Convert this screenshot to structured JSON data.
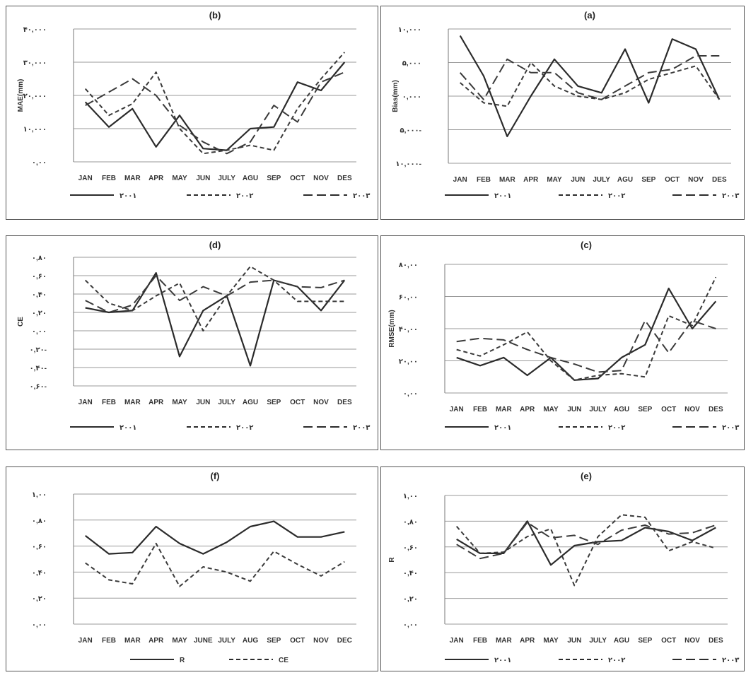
{
  "chart_data": [
    {
      "type": "line",
      "title": "(b)",
      "ylabel": "MAE(mm)",
      "yticks": [
        "۰,۰۰",
        "۱۰,۰۰۰",
        "۲۰,۰۰۰",
        "۳۰,۰۰۰",
        "۴۰,۰۰۰"
      ],
      "ylim": [
        0,
        40
      ],
      "categories": [
        "JAN",
        "FEB",
        "MAR",
        "APR",
        "MAY",
        "JUN",
        "JULY",
        "AGU",
        "SEP",
        "OCT",
        "NOV",
        "DES"
      ],
      "series": [
        {
          "name": "۲۰۰۱",
          "style": "solid",
          "values": [
            18,
            10.5,
            16,
            4.5,
            14,
            4,
            3.5,
            10,
            10.5,
            24,
            21.5,
            30
          ]
        },
        {
          "name": "۲۰۰۲",
          "style": "dashed",
          "values": [
            22,
            14,
            17.5,
            27,
            10,
            2.5,
            3.5,
            5,
            3.5,
            16,
            25,
            33
          ]
        },
        {
          "name": "۲۰۰۳",
          "style": "longdash",
          "values": [
            17,
            21,
            25,
            20,
            11,
            6,
            2.5,
            6,
            17,
            12,
            24,
            27
          ]
        }
      ]
    },
    {
      "type": "line",
      "title": "(a)",
      "ylabel": "Bias(mm)",
      "yticks": [
        "۱۰,۰۰۰-",
        "۵,۰۰۰-",
        "۰,۰۰۰",
        "۵,۰۰۰",
        "۱۰,۰۰۰"
      ],
      "ylim": [
        -10,
        10
      ],
      "categories": [
        "JAN",
        "FEB",
        "MAR",
        "APR",
        "MAY",
        "JUN",
        "JULY",
        "AGU",
        "SEP",
        "OCT",
        "NOV",
        "DES"
      ],
      "series": [
        {
          "name": "۲۰۰۱",
          "style": "solid",
          "values": [
            9,
            3,
            -6,
            0,
            5.5,
            1.5,
            0.5,
            7,
            -1,
            8.5,
            7,
            -0.5
          ]
        },
        {
          "name": "۲۰۰۲",
          "style": "dashed",
          "values": [
            2,
            -1,
            -1.5,
            5,
            1.5,
            0,
            -0.5,
            0.5,
            2.5,
            3.5,
            4.5,
            -0.5
          ]
        },
        {
          "name": "۲۰۰۳",
          "style": "longdash",
          "values": [
            3.5,
            -0.5,
            5.5,
            3.5,
            3.5,
            0.5,
            -0.5,
            1.5,
            3.5,
            4,
            6,
            6
          ]
        }
      ]
    },
    {
      "type": "line",
      "title": "(d)",
      "ylabel": "CE",
      "yticks": [
        "۰,۶۰-",
        "۰,۴۰-",
        "۰,۲۰-",
        "۰,۰۰",
        "۰,۲۰",
        "۰,۴۰",
        "۰,۶۰",
        "۰,۸۰"
      ],
      "ylim": [
        -0.6,
        0.8
      ],
      "categories": [
        "JAN",
        "FEB",
        "MAR",
        "APR",
        "MAY",
        "JUN",
        "JULY",
        "AGU",
        "SEP",
        "OCT",
        "NOV",
        "DES"
      ],
      "series": [
        {
          "name": "۲۰۰۱",
          "style": "solid",
          "values": [
            0.25,
            0.2,
            0.22,
            0.63,
            -0.28,
            0.22,
            0.38,
            -0.38,
            0.55,
            0.48,
            0.22,
            0.55
          ]
        },
        {
          "name": "۲۰۰۲",
          "style": "dashed",
          "values": [
            0.55,
            0.3,
            0.22,
            0.38,
            0.52,
            0.0,
            0.38,
            0.7,
            0.55,
            0.32,
            0.32,
            0.32
          ]
        },
        {
          "name": "۲۰۰۳",
          "style": "longdash",
          "values": [
            0.33,
            0.2,
            0.28,
            0.6,
            0.33,
            0.48,
            0.38,
            0.53,
            0.55,
            0.48,
            0.47,
            0.55
          ]
        }
      ]
    },
    {
      "type": "line",
      "title": "(c)",
      "ylabel": "RMSE(mm)",
      "yticks": [
        "۰,۰۰",
        "۲۰,۰۰",
        "۴۰,۰۰",
        "۶۰,۰۰",
        "۸۰,۰۰"
      ],
      "ylim": [
        0,
        80
      ],
      "categories": [
        "JAN",
        "FEB",
        "MAR",
        "APR",
        "MAY",
        "JUN",
        "JULY",
        "AGU",
        "SEP",
        "OCT",
        "NOV",
        "DES"
      ],
      "series": [
        {
          "name": "۲۰۰۱",
          "style": "solid",
          "values": [
            22,
            17,
            22,
            11,
            22,
            8,
            9,
            22,
            30,
            65,
            40,
            57
          ]
        },
        {
          "name": "۲۰۰۲",
          "style": "dashed",
          "values": [
            27,
            23,
            30,
            38,
            20,
            8,
            11,
            12,
            10,
            48,
            42,
            72
          ]
        },
        {
          "name": "۲۰۰۳",
          "style": "longdash",
          "values": [
            32,
            34,
            33,
            27,
            22,
            18,
            13,
            14,
            45,
            25,
            45,
            40
          ]
        }
      ]
    },
    {
      "type": "line",
      "title": "(f)",
      "ylabel": "",
      "yticks": [
        "۰,۰۰",
        "۰,۲۰",
        "۰,۴۰",
        "۰,۶۰",
        "۰,۸۰",
        "۱,۰۰"
      ],
      "ylim": [
        0,
        1
      ],
      "categories": [
        "JAN",
        "FEB",
        "MAR",
        "APR",
        "MAY",
        "JUNE",
        "JULY",
        "AUG",
        "SEP",
        "OCT",
        "NOV",
        "DEC"
      ],
      "series": [
        {
          "name": "R",
          "style": "solid",
          "values": [
            0.68,
            0.54,
            0.55,
            0.75,
            0.62,
            0.54,
            0.63,
            0.75,
            0.79,
            0.67,
            0.67,
            0.71
          ]
        },
        {
          "name": "CE",
          "style": "dashed",
          "values": [
            0.47,
            0.34,
            0.31,
            0.62,
            0.29,
            0.44,
            0.4,
            0.33,
            0.56,
            0.46,
            0.37,
            0.48
          ]
        }
      ]
    },
    {
      "type": "line",
      "title": "(e)",
      "ylabel": "R",
      "yticks": [
        "۰,۰۰",
        "۰,۲۰",
        "۰,۴۰",
        "۰,۶۰",
        "۰,۸۰",
        "۱,۰۰"
      ],
      "ylim": [
        0,
        1
      ],
      "categories": [
        "JAN",
        "FEB",
        "MAR",
        "APR",
        "MAY",
        "JUN",
        "JULY",
        "AGU",
        "SEP",
        "OCT",
        "NOV",
        "DES"
      ],
      "series": [
        {
          "name": "۲۰۰۱",
          "style": "solid",
          "values": [
            0.66,
            0.55,
            0.55,
            0.8,
            0.46,
            0.61,
            0.64,
            0.65,
            0.75,
            0.72,
            0.65,
            0.75
          ]
        },
        {
          "name": "۲۰۰۲",
          "style": "dashed",
          "values": [
            0.76,
            0.55,
            0.56,
            0.68,
            0.74,
            0.3,
            0.68,
            0.85,
            0.83,
            0.57,
            0.64,
            0.59
          ]
        },
        {
          "name": "۲۰۰۳",
          "style": "longdash",
          "values": [
            0.62,
            0.51,
            0.55,
            0.79,
            0.67,
            0.69,
            0.62,
            0.73,
            0.77,
            0.7,
            0.71,
            0.77
          ]
        }
      ]
    }
  ]
}
